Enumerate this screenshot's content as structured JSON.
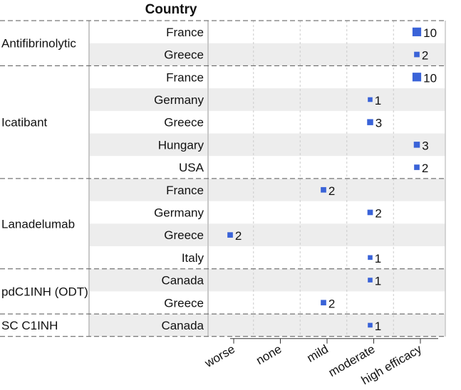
{
  "chart_data": {
    "type": "scatter",
    "column_header": "Country",
    "x_categories": [
      "worse",
      "none",
      "mild",
      "moderate",
      "high efficacy"
    ],
    "marker_color": "#3a63d8",
    "grid": "dashed vertical",
    "groups": [
      {
        "name": "Antifibrinolytic",
        "rows": [
          {
            "country": "France",
            "efficacy": "high efficacy",
            "n": 10
          },
          {
            "country": "Greece",
            "efficacy": "high efficacy",
            "n": 2
          }
        ]
      },
      {
        "name": "Icatibant",
        "rows": [
          {
            "country": "France",
            "efficacy": "high efficacy",
            "n": 10
          },
          {
            "country": "Germany",
            "efficacy": "moderate",
            "n": 1
          },
          {
            "country": "Greece",
            "efficacy": "moderate",
            "n": 3
          },
          {
            "country": "Hungary",
            "efficacy": "high efficacy",
            "n": 3
          },
          {
            "country": "USA",
            "efficacy": "high efficacy",
            "n": 2
          }
        ]
      },
      {
        "name": "Lanadelumab",
        "rows": [
          {
            "country": "France",
            "efficacy": "mild",
            "n": 2
          },
          {
            "country": "Germany",
            "efficacy": "moderate",
            "n": 2
          },
          {
            "country": "Greece",
            "efficacy": "worse",
            "n": 2
          },
          {
            "country": "Italy",
            "efficacy": "moderate",
            "n": 1
          }
        ]
      },
      {
        "name": "pdC1INH (ODT)",
        "rows": [
          {
            "country": "Canada",
            "efficacy": "moderate",
            "n": 1
          },
          {
            "country": "Greece",
            "efficacy": "mild",
            "n": 2
          }
        ]
      },
      {
        "name": "SC C1INH",
        "rows": [
          {
            "country": "Canada",
            "efficacy": "moderate",
            "n": 1
          }
        ]
      }
    ]
  }
}
